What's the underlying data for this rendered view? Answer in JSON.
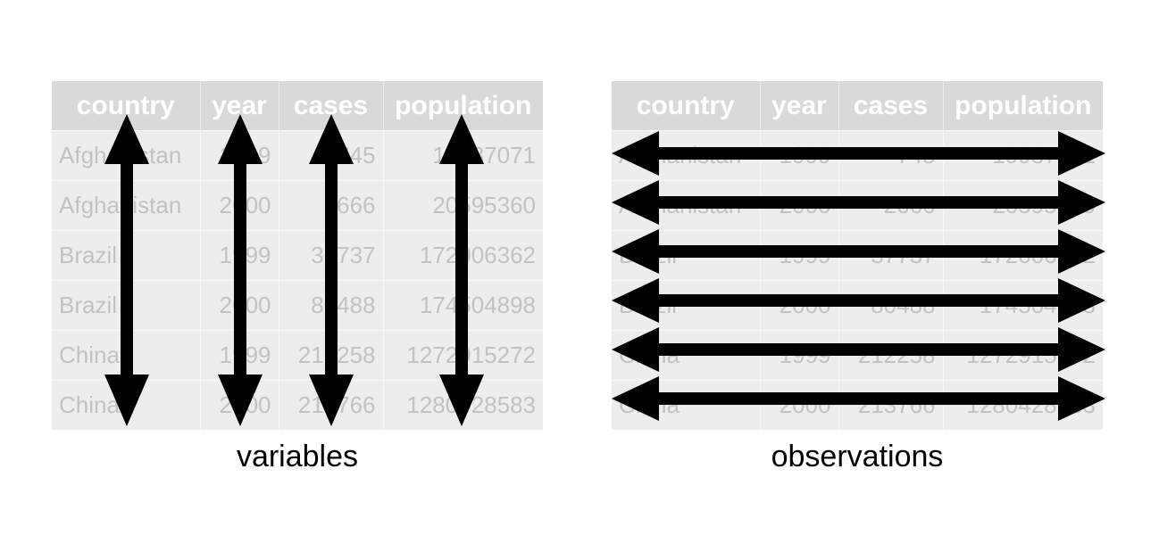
{
  "columns": [
    "country",
    "year",
    "cases",
    "population"
  ],
  "rows": [
    [
      "Afghanistan",
      "1999",
      "745",
      "19987071"
    ],
    [
      "Afghanistan",
      "2000",
      "2666",
      "20595360"
    ],
    [
      "Brazil",
      "1999",
      "37737",
      "172006362"
    ],
    [
      "Brazil",
      "2000",
      "80488",
      "174504898"
    ],
    [
      "China",
      "1999",
      "212258",
      "1272915272"
    ],
    [
      "China",
      "2000",
      "213766",
      "1280428583"
    ]
  ],
  "left_caption": "variables",
  "right_caption": "observations",
  "colors": {
    "header_bg": "#d9d9d9",
    "cell_bg": "#ededed",
    "cell_text": "#c2c2c2",
    "arrow": "#000000"
  }
}
